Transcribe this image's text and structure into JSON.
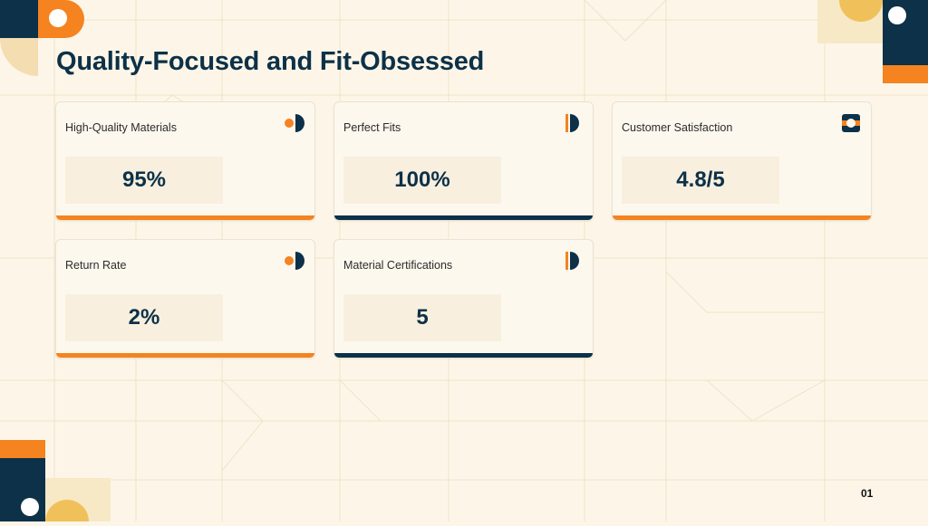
{
  "slide": {
    "title": "Quality-Focused and Fit-Obsessed",
    "page_number": "01"
  },
  "colors": {
    "background": "#fdf6e8",
    "navy": "#0c3148",
    "orange": "#f5831f",
    "sand": "#f3ddb1"
  },
  "cards": [
    {
      "label": "High-Quality Materials",
      "value": "95%",
      "accent": "orange",
      "icon": "dot-half-circle-icon"
    },
    {
      "label": "Perfect Fits",
      "value": "100%",
      "accent": "navy",
      "icon": "bar-half-circle-icon"
    },
    {
      "label": "Customer Satisfaction",
      "value": "4.8/5",
      "accent": "orange",
      "icon": "ring-icon"
    },
    {
      "label": "Return Rate",
      "value": "2%",
      "accent": "orange",
      "icon": "dot-half-circle-icon"
    },
    {
      "label": "Material Certifications",
      "value": "5",
      "accent": "navy",
      "icon": "bar-half-circle-icon"
    }
  ]
}
